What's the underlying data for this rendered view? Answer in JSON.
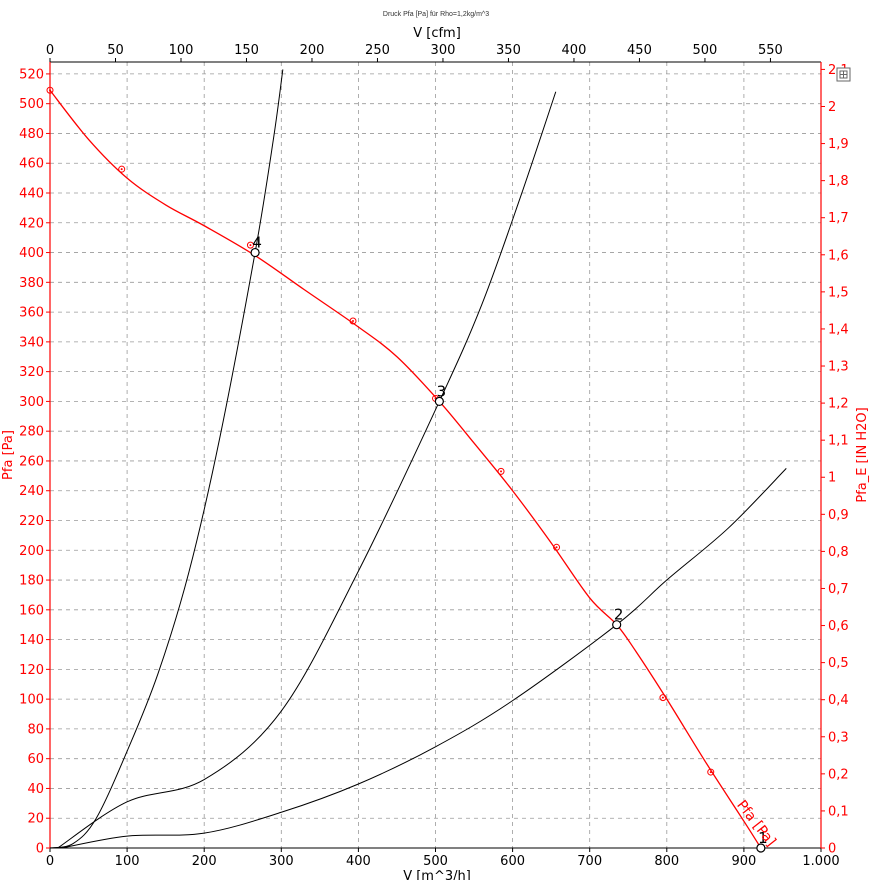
{
  "title": "Druck Pfa [Pa] für Rho=1,2kg/m^3",
  "chart_data": {
    "type": "line",
    "x_bottom": {
      "label": "V [m^3/h]",
      "range": [
        0,
        1000
      ],
      "ticks": [
        "0",
        "100",
        "200",
        "300",
        "400",
        "500",
        "600",
        "700",
        "800",
        "900",
        "1.000"
      ]
    },
    "x_top": {
      "label": "V [cfm]",
      "range": [
        0,
        588.6
      ],
      "ticks": [
        "0",
        "50",
        "100",
        "150",
        "200",
        "250",
        "300",
        "350",
        "400",
        "450",
        "500",
        "550"
      ]
    },
    "y_left": {
      "label": "Pfa [Pa]",
      "range": [
        0,
        528
      ],
      "ticks": [
        "0",
        "20",
        "40",
        "60",
        "80",
        "100",
        "120",
        "140",
        "160",
        "180",
        "200",
        "220",
        "240",
        "260",
        "280",
        "300",
        "320",
        "340",
        "360",
        "380",
        "400",
        "420",
        "440",
        "460",
        "480",
        "500",
        "520"
      ]
    },
    "y_right": {
      "label": "Pfa_E [IN H2O]",
      "range": [
        0,
        2.12
      ],
      "ticks": [
        "0",
        "0,1",
        "0,2",
        "0,3",
        "0,4",
        "0,5",
        "0,6",
        "0,7",
        "0,8",
        "0,9",
        "1",
        "1,1",
        "1,2",
        "1,3",
        "1,4",
        "1,5",
        "1,6",
        "1,7",
        "1,8",
        "1,9",
        "2",
        "2,1"
      ]
    },
    "grid": true,
    "fan_curve": {
      "name": "Pfa [Pa]",
      "color": "#ff0000",
      "x": [
        0,
        50,
        100,
        150,
        200,
        266,
        330,
        400,
        450,
        505,
        550,
        600,
        650,
        700,
        735,
        760,
        800,
        850,
        900,
        922
      ],
      "y": [
        509,
        476,
        450,
        432,
        418,
        398,
        375,
        350,
        330,
        300,
        272,
        240,
        205,
        168,
        150,
        132,
        100,
        58,
        18,
        0
      ]
    },
    "fan_markers": {
      "x": [
        0,
        93,
        260,
        393,
        500,
        585,
        657,
        795,
        857
      ],
      "y": [
        509,
        456,
        405,
        354,
        302,
        253,
        202,
        101,
        51
      ]
    },
    "system_curves": [
      {
        "color": "#000000",
        "x": [
          0,
          30,
          60,
          100,
          140,
          180,
          220,
          266,
          290,
          302
        ],
        "y": [
          0,
          3,
          20,
          65,
          117,
          185,
          275,
          400,
          477,
          523
        ]
      },
      {
        "color": "#000000",
        "x": [
          10,
          100,
          200,
          300,
          400,
          505,
          560,
          610,
          656
        ],
        "y": [
          0,
          31,
          46,
          92,
          186,
          300,
          365,
          437,
          508
        ]
      },
      {
        "color": "#000000",
        "x": [
          15,
          100,
          200,
          300,
          400,
          500,
          600,
          735,
          800,
          880,
          955
        ],
        "y": [
          0,
          8,
          10,
          24,
          43,
          68,
          99,
          150,
          180,
          215,
          255
        ]
      }
    ],
    "operating_points": [
      {
        "label": "1",
        "x": 922,
        "y": 0
      },
      {
        "label": "2",
        "x": 735,
        "y": 150
      },
      {
        "label": "3",
        "x": 505,
        "y": 300
      },
      {
        "label": "4",
        "x": 266,
        "y": 400
      }
    ],
    "curve_label": "Pfa [Pa]"
  }
}
